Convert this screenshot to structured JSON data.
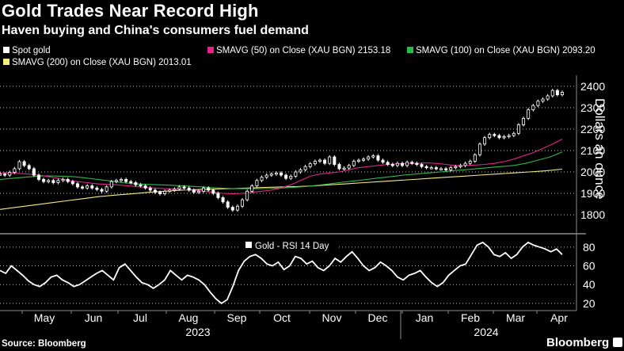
{
  "title": "Gold Trades Near Record High",
  "subtitle": "Haven buying and China's consumers fuel demand",
  "legend": [
    {
      "label": "Spot gold",
      "color": "#ffffff"
    },
    {
      "label": "SMAVG (50)  on Close (XAU BGN) 2153.18",
      "color": "#e0248a"
    },
    {
      "label": "SMAVG (100)  on Close (XAU BGN) 2093.20",
      "color": "#2fb84c"
    },
    {
      "label": "SMAVG (200)  on Close (XAU BGN) 2013.01",
      "color": "#f5ec82"
    }
  ],
  "source": "Source: Bloomberg",
  "brand": "Bloomberg",
  "chart_data": [
    {
      "type": "line",
      "title": "Gold Trades Near Record High",
      "ylabel": "Dollars an ounce",
      "ylim": [
        1730,
        2440
      ],
      "yticks": [
        1800,
        1900,
        2000,
        2100,
        2200,
        2300,
        2400
      ],
      "x_labels": [
        "May",
        "Jun",
        "Jul",
        "Aug",
        "Sep",
        "Oct",
        "Nov",
        "Dec",
        "Jan",
        "Feb",
        "Mar",
        "Apr"
      ],
      "year_labels": [
        "2023",
        "2024"
      ],
      "series": [
        {
          "name": "Spot gold",
          "color": "#ffffff",
          "values": [
            1990,
            1985,
            1998,
            2015,
            2048,
            2030,
            2015,
            1985,
            1965,
            1955,
            1960,
            1950,
            1960,
            1965,
            1955,
            1945,
            1930,
            1925,
            1935,
            1925,
            1918,
            1910,
            1930,
            1955,
            1960,
            1965,
            1955,
            1950,
            1940,
            1935,
            1925,
            1915,
            1905,
            1898,
            1910,
            1915,
            1920,
            1930,
            1925,
            1915,
            1905,
            1910,
            1925,
            1915,
            1900,
            1880,
            1860,
            1835,
            1822,
            1840,
            1870,
            1910,
            1935,
            1960,
            1975,
            1985,
            1990,
            1995,
            1985,
            1970,
            1980,
            2000,
            2010,
            2025,
            2038,
            2050,
            2055,
            2040,
            2070,
            2035,
            2015,
            2018,
            2030,
            2050,
            2055,
            2060,
            2070,
            2075,
            2055,
            2045,
            2035,
            2030,
            2040,
            2030,
            2045,
            2040,
            2035,
            2025,
            2020,
            2020,
            2015,
            2015,
            2010,
            2020,
            2025,
            2030,
            2040,
            2050,
            2080,
            2130,
            2160,
            2175,
            2170,
            2160,
            2165,
            2170,
            2180,
            2220,
            2250,
            2290,
            2310,
            2330,
            2340,
            2355,
            2380,
            2360,
            2372
          ]
        },
        {
          "name": "SMAVG (50)",
          "color": "#e0248a",
          "values": [
            1995,
            1995,
            1993,
            1990,
            1985,
            1978,
            1970,
            1960,
            1955,
            1950,
            1945,
            1942,
            1940,
            1936,
            1932,
            1928,
            1925,
            1922,
            1920,
            1917,
            1915,
            1910,
            1905,
            1900,
            1898,
            1900,
            1905,
            1910,
            1915,
            1925,
            1940,
            1960,
            1980,
            1990,
            1995,
            2000,
            2010,
            2020,
            2025,
            2030,
            2035,
            2038,
            2040,
            2040,
            2042,
            2040,
            2035,
            2030,
            2030,
            2032,
            2035,
            2040,
            2048,
            2060,
            2075,
            2090,
            2110,
            2130,
            2153
          ]
        },
        {
          "name": "SMAVG (100)",
          "color": "#2fb84c",
          "values": [
            1965,
            1970,
            1975,
            1980,
            1982,
            1980,
            1978,
            1972,
            1965,
            1958,
            1950,
            1945,
            1942,
            1940,
            1938,
            1935,
            1932,
            1928,
            1925,
            1922,
            1922,
            1922,
            1923,
            1925,
            1928,
            1932,
            1938,
            1945,
            1952,
            1958,
            1965,
            1972,
            1978,
            1985,
            1990,
            1995,
            2000,
            2005,
            2010,
            2015,
            2020,
            2025,
            2030,
            2040,
            2055,
            2070,
            2093
          ]
        },
        {
          "name": "SMAVG (200)",
          "color": "#f5ec82",
          "values": [
            1825,
            1835,
            1845,
            1855,
            1865,
            1875,
            1885,
            1892,
            1898,
            1905,
            1910,
            1915,
            1918,
            1920,
            1922,
            1925,
            1928,
            1930,
            1932,
            1935,
            1940,
            1945,
            1950,
            1955,
            1960,
            1965,
            1970,
            1975,
            1980,
            1985,
            1990,
            1995,
            2000,
            2005,
            2013
          ]
        }
      ]
    },
    {
      "type": "line",
      "title": "Gold - RSI 14 Day",
      "ylim": [
        14,
        90
      ],
      "yticks": [
        20,
        40,
        60,
        80
      ],
      "series": [
        {
          "name": "Gold - RSI 14 Day",
          "color": "#ffffff",
          "values": [
            55,
            52,
            60,
            55,
            50,
            44,
            40,
            38,
            42,
            48,
            50,
            45,
            42,
            38,
            40,
            44,
            48,
            52,
            55,
            50,
            45,
            58,
            62,
            55,
            48,
            42,
            40,
            36,
            40,
            45,
            55,
            50,
            45,
            50,
            48,
            45,
            40,
            32,
            25,
            20,
            24,
            38,
            55,
            65,
            70,
            72,
            68,
            62,
            60,
            64,
            56,
            60,
            70,
            68,
            62,
            65,
            58,
            55,
            60,
            68,
            64,
            70,
            75,
            68,
            60,
            55,
            58,
            64,
            60,
            55,
            48,
            45,
            50,
            52,
            55,
            48,
            42,
            38,
            42,
            50,
            55,
            60,
            62,
            72,
            82,
            85,
            80,
            72,
            70,
            74,
            68,
            72,
            80,
            85,
            82,
            80,
            78,
            75,
            78,
            72
          ]
        }
      ]
    }
  ]
}
